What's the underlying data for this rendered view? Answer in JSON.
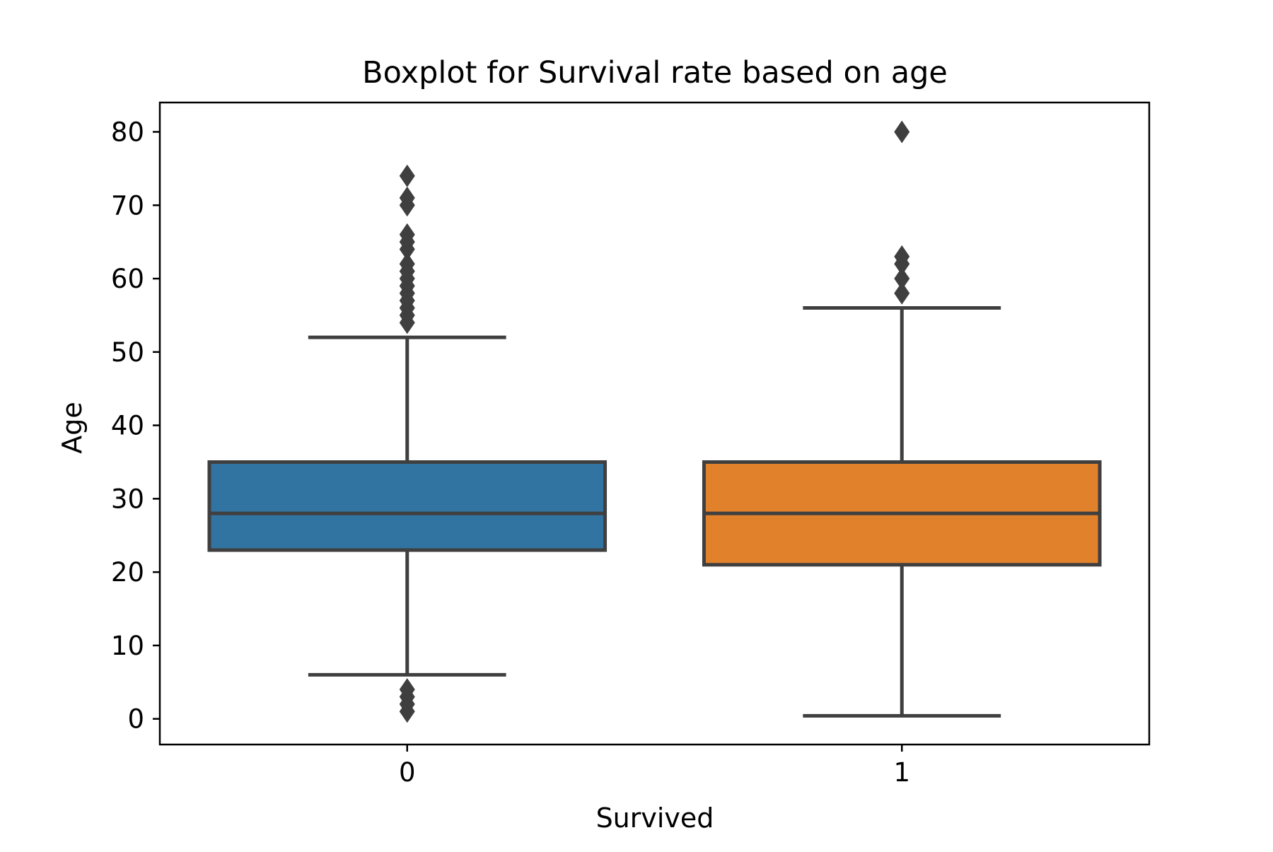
{
  "chart_data": {
    "type": "box",
    "title": "Boxplot for Survival rate based on age",
    "xlabel": "Survived",
    "ylabel": "Age",
    "ylim": [
      -3.5,
      84
    ],
    "yticks": [
      0,
      10,
      20,
      30,
      40,
      50,
      60,
      70,
      80
    ],
    "categories": [
      "0",
      "1"
    ],
    "boxes": [
      {
        "category": "0",
        "color": "#3274a1",
        "whisker_low": 6,
        "q1": 23,
        "median": 28,
        "q3": 35,
        "whisker_high": 52,
        "outliers": [
          1,
          2,
          3,
          4,
          54,
          55,
          56,
          57,
          58,
          59,
          60,
          61,
          62,
          64,
          65,
          66,
          70,
          71,
          74
        ]
      },
      {
        "category": "1",
        "color": "#e1812c",
        "whisker_low": 0.42,
        "q1": 21,
        "median": 28,
        "q3": 35,
        "whisker_high": 56,
        "outliers": [
          58,
          60,
          62,
          63,
          80
        ]
      }
    ],
    "grid": false,
    "legend": "none"
  },
  "colors": {
    "line": "#3f3f3f",
    "axis": "#000000"
  }
}
